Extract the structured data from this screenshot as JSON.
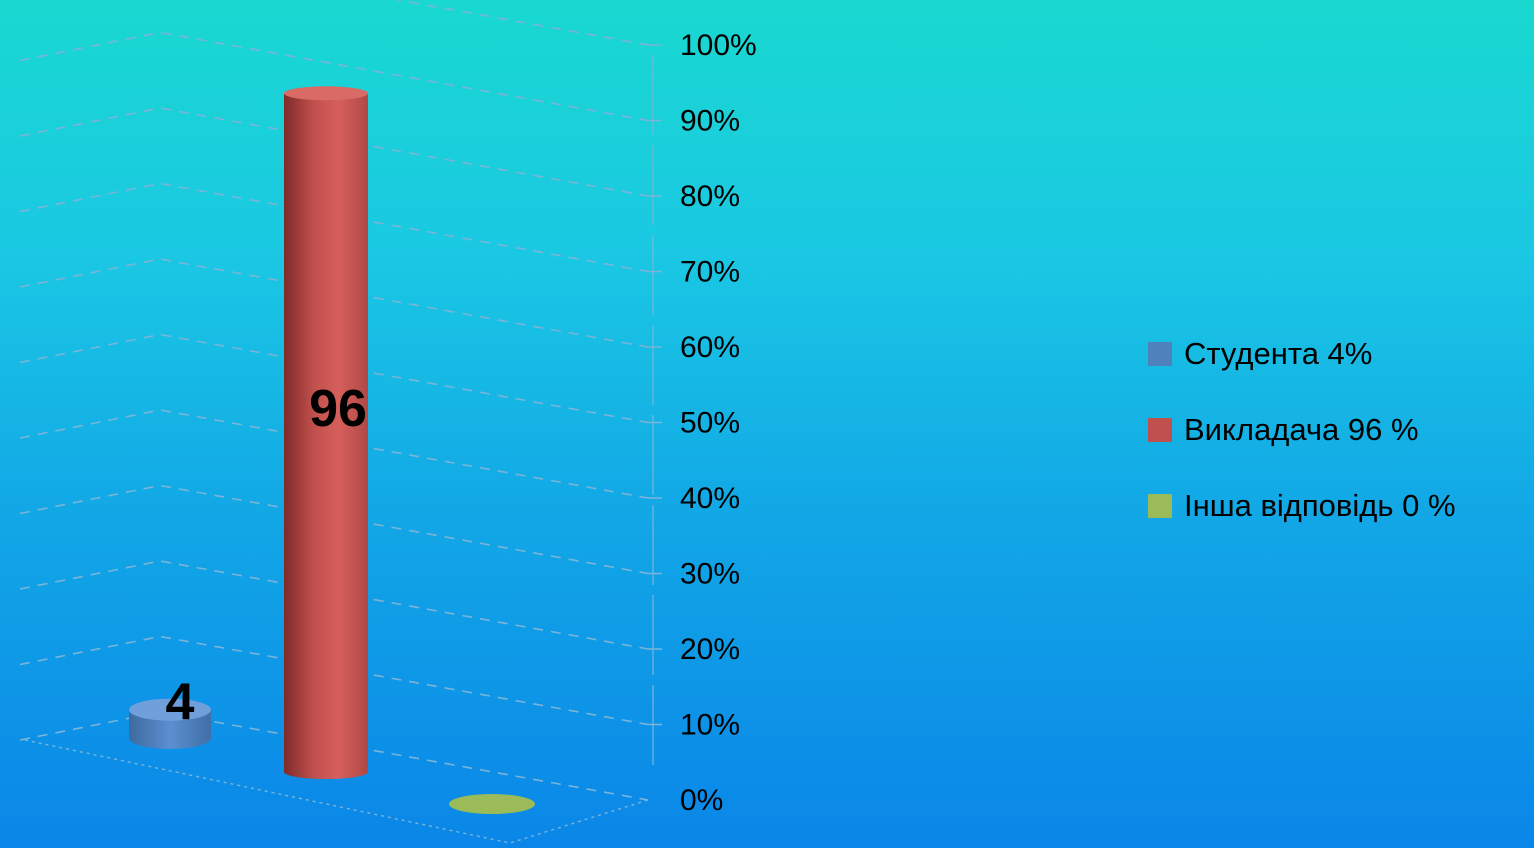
{
  "chart_data": {
    "type": "bar",
    "categories": [
      "Студента",
      "Викладача",
      "Інша відповідь"
    ],
    "values": [
      4,
      96,
      0
    ],
    "data_labels": [
      "4",
      "96",
      ""
    ],
    "ylim": [
      0,
      100
    ],
    "y_ticks": [
      "0%",
      "10%",
      "20%",
      "30%",
      "40%",
      "50%",
      "60%",
      "70%",
      "80%",
      "90%",
      "100%"
    ],
    "grid": true,
    "legend_position": "right",
    "colors": [
      "#4f81bd",
      "#c0504d",
      "#9bbb59"
    ]
  },
  "legend": {
    "items": [
      {
        "label": "Студента 4%",
        "color": "#4f81bd"
      },
      {
        "label": "Викладача 96 %",
        "color": "#c0504d"
      },
      {
        "label": "Інша відповідь 0 %",
        "color": "#9bbb59"
      }
    ]
  }
}
